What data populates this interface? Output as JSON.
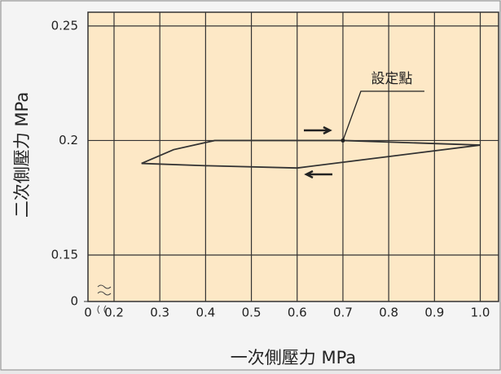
{
  "chart_data": {
    "type": "line",
    "xlabel": "一次側壓力 MPa",
    "ylabel": "二次側壓力 MPa",
    "xlim": [
      0,
      1.04
    ],
    "ylim": [
      0,
      0.256
    ],
    "xticks": [
      0,
      0.2,
      0.3,
      0.4,
      0.5,
      0.6,
      0.7,
      0.8,
      0.9,
      {
        "value": 1,
        "label": "1.0"
      }
    ],
    "yticks": [
      0,
      0.15,
      0.2,
      0.25
    ],
    "grid": true,
    "series": [
      {
        "color": "#333333",
        "x": [
          0.26,
          0.33,
          0.42,
          0.6,
          0.7,
          0.85,
          1.0
        ],
        "values": [
          0.19,
          0.196,
          0.2,
          0.2,
          0.2,
          0.199,
          0.198
        ]
      },
      {
        "color": "#333333",
        "x": [
          1.0,
          0.8,
          0.6,
          0.4,
          0.26
        ],
        "values": [
          0.198,
          0.193,
          0.188,
          0.189,
          0.19
        ]
      }
    ],
    "annotations": [
      {
        "text": "設定點"
      }
    ]
  }
}
